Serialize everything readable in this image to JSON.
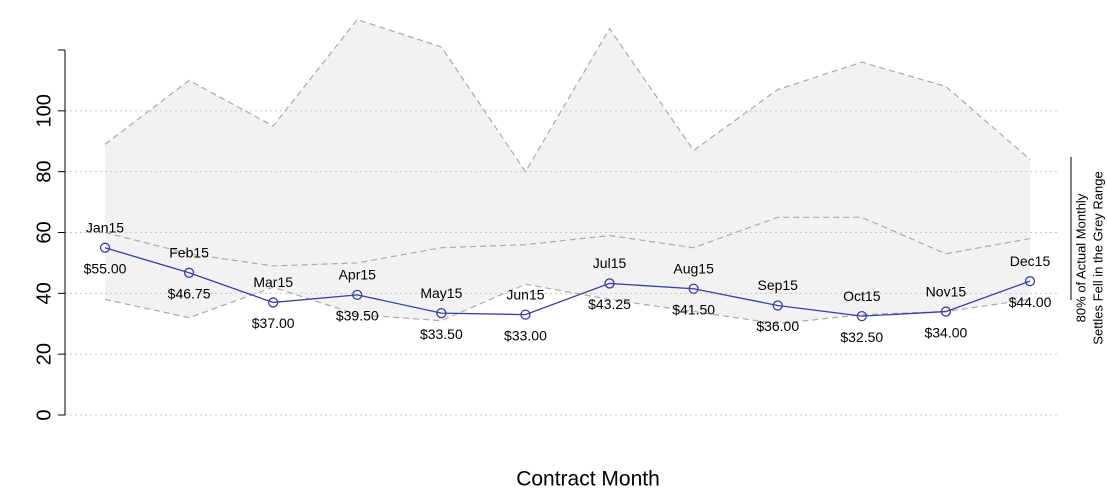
{
  "chart_data": {
    "type": "line",
    "xlabel": "Contract Month",
    "annotation": [
      "80% of Actual Monthly",
      "Settles Fell in the Grey Range"
    ],
    "categories": [
      "Jan15",
      "Feb15",
      "Mar15",
      "Apr15",
      "May15",
      "Jun15",
      "Jul15",
      "Aug15",
      "Sep15",
      "Oct15",
      "Nov15",
      "Dec15"
    ],
    "values": [
      55,
      46.75,
      37,
      39.5,
      33.5,
      33,
      43.25,
      41.5,
      36,
      32.5,
      34,
      44
    ],
    "value_labels": [
      "$55.00",
      "$46.75",
      "$37.00",
      "$39.50",
      "$33.50",
      "$33.00",
      "$43.25",
      "$41.50",
      "$36.00",
      "$32.50",
      "$34.00",
      "$44.00"
    ],
    "color": "#3b3f9f",
    "range_upper": [
      89,
      110,
      95,
      130,
      121,
      80,
      127,
      87,
      107,
      116,
      108,
      84
    ],
    "range_middle": [
      60,
      53,
      49,
      50,
      55,
      56,
      59,
      55,
      65,
      65,
      53,
      58
    ],
    "range_lower": [
      38,
      32,
      42,
      33,
      31,
      43,
      38,
      34,
      30,
      33,
      34,
      38
    ],
    "range_color": "#f2f2f2",
    "ylim": [
      0,
      120
    ],
    "yticks": [
      0,
      20,
      40,
      60,
      80,
      100
    ],
    "grid": true
  }
}
